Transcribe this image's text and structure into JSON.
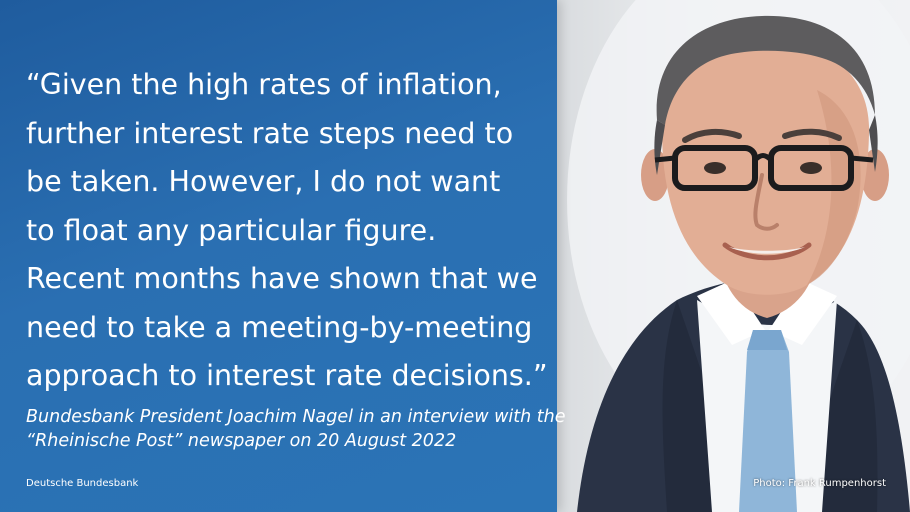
{
  "quote": {
    "lines": [
      "“Given the high rates of inflation,",
      "further interest rate steps need to",
      "be taken. However, I do not want",
      "to float any particular figure.",
      "Recent months have shown that we",
      "need to take a meeting-by-meeting",
      "approach to interest rate decisions.”"
    ]
  },
  "attribution": {
    "lines": [
      "Bundesbank President Joachim Nagel in an interview with the",
      "“Rheinische Post” newspaper on 20 August 2022"
    ]
  },
  "organization": "Deutsche Bundesbank",
  "photo": {
    "credit": "Photo:  Frank Rumpenhorst",
    "icon": "portrait-photo"
  },
  "colors": {
    "panel_blue": "#2a6fb2",
    "text": "#ffffff",
    "suit": "#2a3346",
    "tie": "#8fb6d9"
  }
}
